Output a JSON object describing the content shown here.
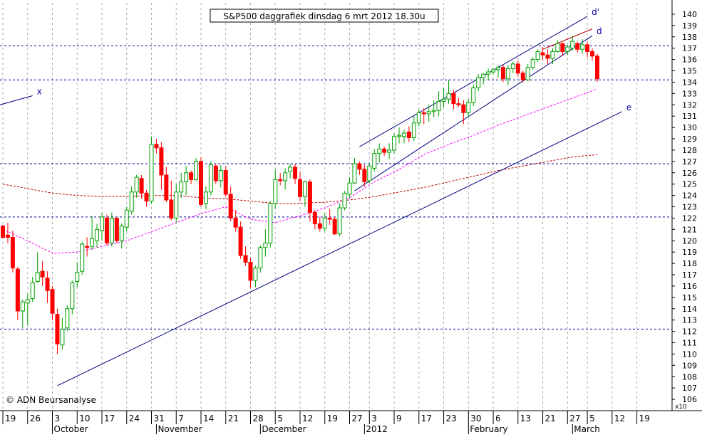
{
  "chart_data": {
    "type": "candlestick",
    "title": "S&P500 daggrafiek dinsdag 6 mrt 2012 18.30u",
    "copyright": "© ADN Beursanalyse",
    "y_multiplier_label": "x10",
    "ylim": [
      105,
      141
    ],
    "y_ticks": [
      106,
      107,
      108,
      109,
      110,
      111,
      112,
      113,
      114,
      115,
      116,
      117,
      118,
      119,
      120,
      121,
      122,
      123,
      124,
      125,
      126,
      127,
      128,
      129,
      130,
      131,
      132,
      133,
      134,
      135,
      136,
      137,
      138,
      139,
      140
    ],
    "x_ticks": [
      {
        "i": 0,
        "label": "19"
      },
      {
        "i": 5,
        "label": "26"
      },
      {
        "i": 10,
        "label": "3"
      },
      {
        "i": 15,
        "label": "10"
      },
      {
        "i": 20,
        "label": "17"
      },
      {
        "i": 25,
        "label": "24"
      },
      {
        "i": 30,
        "label": "31"
      },
      {
        "i": 35,
        "label": "7"
      },
      {
        "i": 40,
        "label": "14"
      },
      {
        "i": 45,
        "label": "21"
      },
      {
        "i": 50,
        "label": "28"
      },
      {
        "i": 55,
        "label": "5"
      },
      {
        "i": 60,
        "label": "12"
      },
      {
        "i": 65,
        "label": "19"
      },
      {
        "i": 70,
        "label": "27"
      },
      {
        "i": 74,
        "label": "3"
      },
      {
        "i": 79,
        "label": "9"
      },
      {
        "i": 84,
        "label": "17"
      },
      {
        "i": 89,
        "label": "23"
      },
      {
        "i": 94,
        "label": "30"
      },
      {
        "i": 99,
        "label": "6"
      },
      {
        "i": 104,
        "label": "13"
      },
      {
        "i": 109,
        "label": "21"
      },
      {
        "i": 114,
        "label": "27"
      },
      {
        "i": 118,
        "label": "5"
      },
      {
        "i": 123,
        "label": "12"
      },
      {
        "i": 128,
        "label": "19"
      }
    ],
    "months": [
      {
        "i": 10,
        "label": "October"
      },
      {
        "i": 31,
        "label": "November"
      },
      {
        "i": 52,
        "label": "December"
      },
      {
        "i": 73,
        "label": "2012"
      },
      {
        "i": 94,
        "label": "February"
      },
      {
        "i": 115,
        "label": "March"
      }
    ],
    "h_lines": [
      137.2,
      134.2,
      126.8,
      122.1,
      112.2
    ],
    "colors": {
      "up": "#00a000",
      "down": "#ff0000",
      "grid": "#aaaaaa",
      "hline": "#0000a0",
      "ma_short": "#ff00ff",
      "ma_long": "#c00000",
      "trend": "#000080",
      "label": "#0000a0"
    },
    "candles": [
      [
        121.3,
        121.4,
        120.2,
        120.3
      ],
      [
        120.5,
        121.6,
        119.8,
        120.3
      ],
      [
        120.3,
        120.9,
        117.2,
        117.6
      ],
      [
        117.5,
        117.7,
        113.0,
        113.8
      ],
      [
        113.8,
        114.8,
        112.3,
        114.6
      ],
      [
        114.5,
        115.3,
        112.5,
        114.8
      ],
      [
        114.9,
        116.8,
        114.6,
        116.3
      ],
      [
        116.4,
        119.0,
        116.3,
        117.2
      ],
      [
        117.3,
        118.2,
        116.0,
        116.8
      ],
      [
        116.7,
        117.3,
        114.5,
        115.6
      ],
      [
        115.7,
        116.0,
        113.0,
        113.6
      ],
      [
        113.5,
        114.0,
        110.0,
        110.9
      ],
      [
        110.8,
        113.2,
        110.4,
        112.2
      ],
      [
        112.3,
        114.3,
        112.0,
        114.0
      ],
      [
        114.0,
        116.5,
        113.5,
        116.3
      ],
      [
        116.4,
        118.1,
        115.9,
        117.2
      ],
      [
        117.3,
        119.9,
        117.0,
        119.7
      ],
      [
        119.5,
        120.3,
        118.6,
        119.4
      ],
      [
        119.5,
        122.2,
        119.2,
        120.2
      ],
      [
        120.0,
        121.5,
        119.4,
        121.0
      ],
      [
        120.9,
        122.5,
        120.0,
        122.1
      ],
      [
        122.0,
        122.3,
        119.6,
        119.8
      ],
      [
        119.8,
        122.5,
        119.5,
        122.0
      ],
      [
        122.0,
        122.0,
        119.8,
        120.0
      ],
      [
        120.0,
        121.5,
        119.3,
        121.3
      ],
      [
        121.2,
        123.0,
        120.8,
        122.7
      ],
      [
        122.6,
        124.8,
        122.3,
        124.3
      ],
      [
        124.3,
        125.8,
        123.8,
        125.6
      ],
      [
        125.5,
        125.8,
        123.7,
        124.2
      ],
      [
        124.2,
        124.5,
        123.0,
        123.5
      ],
      [
        123.5,
        129.2,
        123.3,
        128.5
      ],
      [
        128.5,
        129.0,
        127.7,
        128.2
      ],
      [
        128.2,
        128.7,
        124.5,
        125.8
      ],
      [
        125.8,
        126.5,
        123.4,
        123.6
      ],
      [
        123.6,
        125.3,
        121.8,
        122.0
      ],
      [
        122.0,
        125.0,
        121.6,
        124.3
      ],
      [
        124.3,
        126.0,
        123.8,
        125.2
      ],
      [
        125.2,
        126.6,
        124.0,
        126.0
      ],
      [
        126.0,
        126.2,
        125.0,
        125.4
      ],
      [
        125.4,
        127.3,
        125.3,
        127.0
      ],
      [
        127.0,
        127.4,
        123.0,
        123.2
      ],
      [
        123.3,
        124.8,
        122.8,
        124.3
      ],
      [
        124.3,
        127.0,
        124.0,
        126.7
      ],
      [
        126.6,
        126.8,
        125.0,
        125.3
      ],
      [
        125.3,
        126.7,
        124.7,
        126.2
      ],
      [
        126.2,
        126.6,
        123.9,
        124.1
      ],
      [
        124.1,
        124.8,
        121.7,
        122.0
      ],
      [
        122.0,
        122.7,
        120.8,
        121.2
      ],
      [
        121.2,
        121.7,
        118.4,
        118.7
      ],
      [
        118.7,
        119.5,
        117.8,
        118.1
      ],
      [
        118.1,
        118.5,
        115.8,
        116.5
      ],
      [
        116.5,
        117.8,
        115.9,
        117.6
      ],
      [
        117.6,
        119.6,
        117.2,
        119.4
      ],
      [
        119.4,
        121.0,
        118.6,
        119.8
      ],
      [
        119.8,
        123.5,
        119.4,
        123.3
      ],
      [
        123.3,
        126.3,
        122.8,
        125.4
      ],
      [
        125.4,
        126.0,
        124.9,
        125.3
      ],
      [
        125.3,
        126.4,
        124.5,
        126.0
      ],
      [
        126.1,
        126.8,
        125.5,
        126.5
      ],
      [
        126.5,
        126.8,
        125.0,
        125.5
      ],
      [
        125.4,
        126.1,
        123.5,
        123.9
      ],
      [
        123.9,
        125.3,
        123.0,
        125.2
      ],
      [
        125.2,
        125.4,
        121.7,
        122.5
      ],
      [
        122.5,
        122.7,
        121.0,
        121.5
      ],
      [
        121.5,
        122.1,
        120.8,
        121.1
      ],
      [
        121.1,
        122.4,
        120.8,
        122.0
      ],
      [
        122.0,
        122.8,
        121.4,
        121.9
      ],
      [
        121.9,
        122.1,
        120.5,
        120.6
      ],
      [
        120.6,
        123.3,
        120.4,
        122.9
      ],
      [
        122.9,
        124.4,
        122.7,
        124.2
      ],
      [
        124.1,
        125.6,
        123.8,
        125.1
      ],
      [
        125.1,
        127.3,
        125.0,
        126.8
      ],
      [
        126.8,
        127.0,
        125.8,
        126.3
      ],
      [
        126.3,
        126.7,
        124.8,
        125.2
      ],
      [
        125.3,
        126.8,
        125.1,
        126.6
      ],
      [
        126.4,
        128.1,
        126.1,
        127.7
      ],
      [
        127.7,
        128.6,
        126.9,
        128.1
      ],
      [
        128.1,
        128.3,
        127.5,
        127.8
      ],
      [
        127.8,
        128.6,
        127.2,
        128.0
      ],
      [
        128.0,
        129.5,
        127.7,
        129.2
      ],
      [
        129.2,
        130.0,
        128.6,
        129.3
      ],
      [
        129.2,
        129.8,
        128.6,
        129.5
      ],
      [
        129.6,
        130.1,
        128.7,
        129.1
      ],
      [
        129.1,
        131.0,
        128.8,
        130.4
      ],
      [
        130.4,
        131.6,
        130.1,
        131.3
      ],
      [
        131.3,
        131.7,
        130.3,
        131.2
      ],
      [
        131.2,
        132.0,
        130.5,
        131.4
      ],
      [
        131.4,
        132.4,
        130.9,
        131.5
      ],
      [
        131.5,
        133.2,
        131.0,
        132.3
      ],
      [
        132.3,
        133.5,
        131.8,
        132.5
      ],
      [
        132.5,
        134.2,
        132.1,
        133.0
      ],
      [
        133.0,
        133.3,
        131.6,
        132.1
      ],
      [
        132.1,
        132.6,
        131.8,
        132.0
      ],
      [
        132.0,
        132.4,
        130.3,
        131.3
      ],
      [
        131.3,
        132.5,
        130.9,
        132.2
      ],
      [
        132.2,
        133.8,
        131.9,
        133.5
      ],
      [
        133.5,
        134.7,
        133.2,
        134.4
      ],
      [
        134.4,
        134.8,
        133.8,
        134.7
      ],
      [
        134.7,
        135.2,
        134.2,
        134.9
      ],
      [
        134.9,
        135.3,
        134.7,
        135.1
      ],
      [
        135.1,
        135.5,
        134.4,
        135.3
      ],
      [
        135.3,
        135.5,
        134.0,
        134.3
      ],
      [
        134.3,
        135.5,
        133.7,
        135.2
      ],
      [
        135.2,
        135.8,
        134.8,
        135.6
      ],
      [
        135.6,
        135.9,
        134.5,
        134.8
      ],
      [
        134.8,
        135.0,
        134.0,
        134.2
      ],
      [
        134.2,
        135.6,
        134.1,
        135.3
      ],
      [
        135.3,
        136.2,
        135.1,
        136.0
      ],
      [
        136.0,
        136.9,
        135.8,
        136.7
      ],
      [
        136.6,
        137.1,
        135.9,
        136.4
      ],
      [
        136.4,
        136.9,
        135.6,
        136.1
      ],
      [
        136.1,
        137.0,
        135.6,
        136.7
      ],
      [
        136.7,
        137.7,
        136.6,
        137.4
      ],
      [
        137.4,
        137.5,
        136.3,
        136.7
      ],
      [
        136.7,
        137.3,
        136.4,
        137.1
      ],
      [
        137.0,
        138.1,
        136.8,
        137.6
      ],
      [
        137.4,
        137.6,
        136.6,
        136.9
      ],
      [
        136.9,
        137.8,
        136.5,
        137.3
      ],
      [
        137.3,
        137.6,
        136.2,
        136.7
      ],
      [
        136.7,
        137.0,
        135.9,
        136.3
      ],
      [
        136.3,
        136.5,
        134.0,
        134.3
      ]
    ],
    "ma_short": [
      [
        0,
        121.0
      ],
      [
        5,
        120.0
      ],
      [
        10,
        118.9
      ],
      [
        15,
        119.0
      ],
      [
        20,
        119.5
      ],
      [
        25,
        120.0
      ],
      [
        30,
        120.8
      ],
      [
        35,
        121.6
      ],
      [
        40,
        122.4
      ],
      [
        45,
        123.0
      ],
      [
        50,
        121.9
      ],
      [
        55,
        121.6
      ],
      [
        60,
        122.2
      ],
      [
        65,
        122.9
      ],
      [
        70,
        123.8
      ],
      [
        75,
        125.2
      ],
      [
        80,
        126.3
      ],
      [
        85,
        127.6
      ],
      [
        90,
        128.5
      ],
      [
        95,
        129.3
      ],
      [
        100,
        130.2
      ],
      [
        105,
        131.0
      ],
      [
        110,
        131.8
      ],
      [
        115,
        132.6
      ],
      [
        120,
        133.4
      ]
    ],
    "ma_long": [
      [
        0,
        125.0
      ],
      [
        5,
        124.6
      ],
      [
        10,
        124.2
      ],
      [
        15,
        124.0
      ],
      [
        20,
        123.9
      ],
      [
        25,
        123.9
      ],
      [
        30,
        124.0
      ],
      [
        35,
        124.0
      ],
      [
        40,
        123.8
      ],
      [
        45,
        123.7
      ],
      [
        50,
        123.5
      ],
      [
        55,
        123.3
      ],
      [
        60,
        123.3
      ],
      [
        65,
        123.4
      ],
      [
        70,
        123.6
      ],
      [
        75,
        123.9
      ],
      [
        80,
        124.3
      ],
      [
        85,
        124.7
      ],
      [
        90,
        125.2
      ],
      [
        95,
        125.7
      ],
      [
        100,
        126.2
      ],
      [
        105,
        126.6
      ],
      [
        110,
        127.0
      ],
      [
        115,
        127.4
      ],
      [
        120,
        127.6
      ]
    ],
    "trendlines": [
      {
        "label": "x",
        "from": [
          -3,
          131.7
        ],
        "to": [
          6,
          132.8
        ]
      },
      {
        "label": "e",
        "from": [
          11,
          107.2
        ],
        "to": [
          125,
          131.4
        ]
      },
      {
        "label": "d'",
        "from": [
          72,
          128.3
        ],
        "to": [
          118,
          139.8
        ]
      },
      {
        "label": "d",
        "from": [
          71,
          124.4
        ],
        "to": [
          119,
          138.1
        ]
      },
      {
        "label": "",
        "from": [
          109,
          136.9
        ],
        "to": [
          119,
          138.7
        ]
      }
    ]
  }
}
